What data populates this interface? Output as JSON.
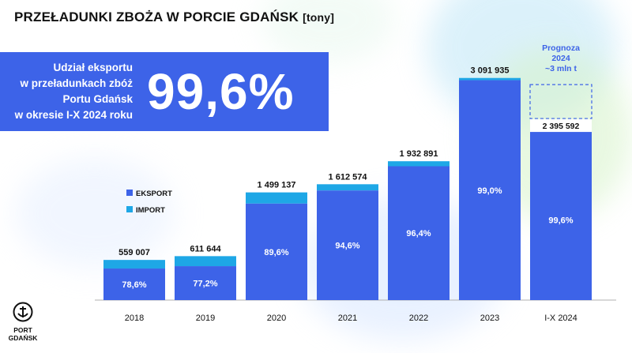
{
  "header": {
    "title": "PRZEŁADUNKI ZBOŻA W PORCIE GDAŃSK",
    "unit": "[tony]"
  },
  "banner": {
    "lines": [
      "Udział eksportu",
      "w przeładunkach zbóż",
      "Portu Gdańsk",
      "w okresie I-X 2024 roku"
    ],
    "big_value": "99,6%"
  },
  "logo": {
    "line1": "PORT",
    "line2": "GDAŃSK"
  },
  "colors": {
    "eksport": "#3d63e8",
    "import": "#1ea7e6",
    "banner": "#3d63e8",
    "forecast": "#3d63e8"
  },
  "chart_data": {
    "type": "bar",
    "stacked": true,
    "categories": [
      "2018",
      "2019",
      "2020",
      "2021",
      "2022",
      "2023",
      "I-X 2024"
    ],
    "totals": [
      559007,
      611644,
      1499137,
      1612574,
      1932891,
      3091935,
      2395592
    ],
    "total_labels": [
      "559 007",
      "611 644",
      "1 499 137",
      "1 612 574",
      "1 932 891",
      "3 091 935",
      "2 395 592"
    ],
    "series": [
      {
        "name": "EKSPORT",
        "share_labels": [
          "78,6%",
          "77,2%",
          "89,6%",
          "94,6%",
          "96,4%",
          "99,0%",
          "99,6%"
        ],
        "share": [
          0.786,
          0.772,
          0.896,
          0.946,
          0.964,
          0.99,
          0.996
        ]
      },
      {
        "name": "IMPORT",
        "share": [
          0.214,
          0.228,
          0.104,
          0.054,
          0.036,
          0.01,
          0.004
        ]
      }
    ],
    "legend": [
      "EKSPORT",
      "IMPORT"
    ],
    "legend_position": "left",
    "forecast": {
      "category": "I-X 2024",
      "lines": [
        "Prognoza",
        "2024",
        "~3 mln t"
      ],
      "value": 3000000
    },
    "ylim": [
      0,
      3100000
    ],
    "grid": false
  }
}
